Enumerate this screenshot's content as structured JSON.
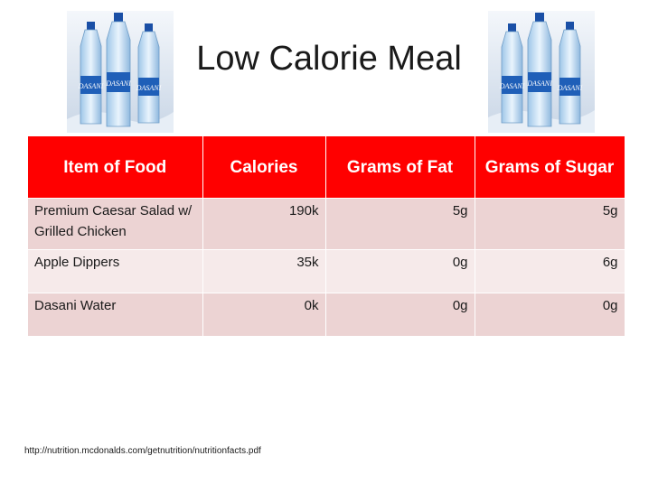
{
  "slide": {
    "title": "Low Calorie Meal",
    "source": "http://nutrition.mcdonalds.com/getnutrition/nutritionfacts.pdf"
  },
  "bottle_label": "DASANI",
  "table": {
    "headers": [
      "Item of Food",
      "Calories",
      "Grams of Fat",
      "Grams of Sugar"
    ],
    "rows": [
      [
        "Premium Caesar Salad w/ Grilled Chicken",
        "190k",
        "5g",
        "5g"
      ],
      [
        "Apple Dippers",
        "35k",
        "0g",
        "6g"
      ],
      [
        "Dasani Water",
        "0k",
        "0g",
        "0g"
      ]
    ]
  },
  "colors": {
    "header_bg": "#ff0000",
    "row_dark": "#ecd3d3",
    "row_light": "#f6eaea",
    "bottle_cap": "#1a4fa6",
    "bottle_label": "#1f5fb8"
  }
}
